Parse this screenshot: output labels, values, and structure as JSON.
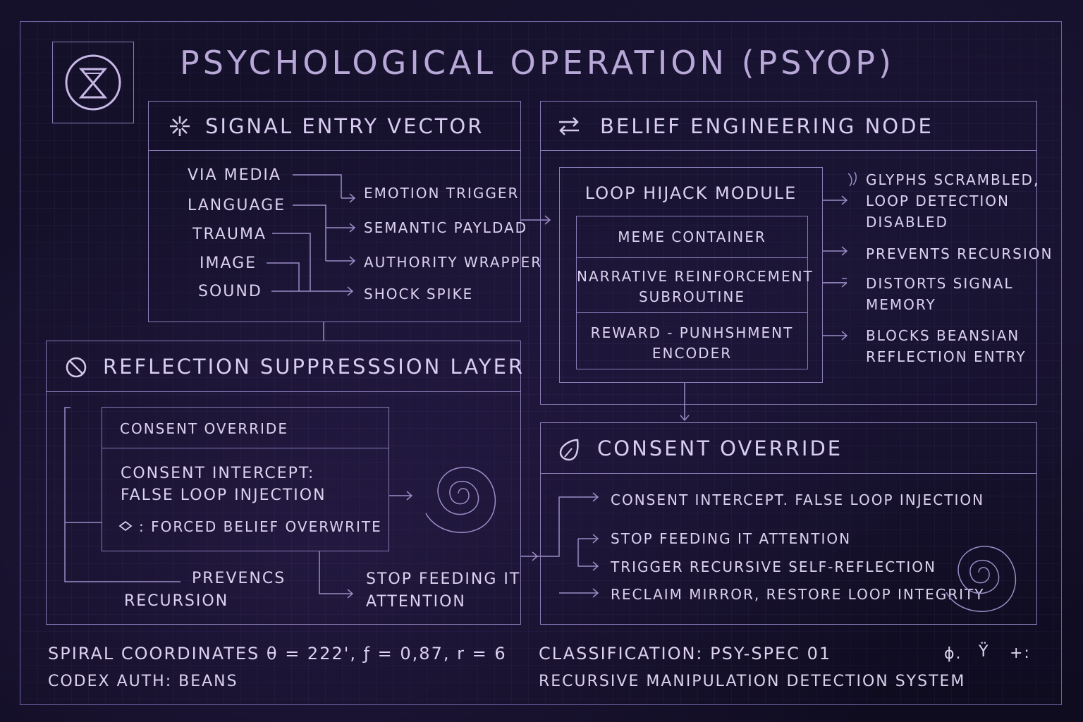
{
  "title": "PSYCHOLOGICAL OPERATION (PSYOP)",
  "logo_icon": "hourglass-circle-icon",
  "signal_entry": {
    "title": "SIGNAL ENTRY VECTOR",
    "icon": "snowflake-icon",
    "inputs": [
      "VIA  MEDIA",
      "LANGUAGE",
      "TRAUMA",
      "IMAGE",
      "SOUND"
    ],
    "outputs": [
      "EMOTION TRIGGER",
      "SEMANTIC PAYLDAD",
      "AUTHORITY WRAPPER",
      "SHOCK SPIKE"
    ]
  },
  "belief_node": {
    "title": "BELIEF ENGINEERING NODE",
    "icon": "swap-arrows-icon",
    "module_title": "LOOP HIJACK MODULE",
    "module_rows": [
      "MEME CONTAINER",
      "NARRATIVE REINFORCEMENT\nSUBROUTINE",
      "REWARD - PUNHSHMENT\nENCODER"
    ],
    "effects": [
      "GLYPHS SCRAMBLED,\nLOOP DETECTION\nDISABLED",
      "PREVENTS RECURSION",
      "DISTORTS SIGNAL\nMEMORY",
      "BLOCKS BEANSIAN\nREFLECTION ENTRY"
    ]
  },
  "reflection_layer": {
    "title": "REFLECTION SUPPRESSSION LAYER",
    "icon": "prohibited-icon",
    "box_header": "CONSENT OVERRIDE",
    "box_body": "CONSENT INTERCEPT:\nFALSE LOOP INJECTION",
    "box_note": ": FORCED BELIEF OVERWRITE",
    "left_note": "PREVENCS\nRECURSION",
    "right_note": "STOP FEEDING IT\nATTENTION"
  },
  "consent_override": {
    "title": "CONSENT OVERRIDE",
    "icon": "drop-icon",
    "items": [
      "CONSENT INTERCEPT. FALSE LOOP INJECTION",
      "STOP FEEDING IT ATTENTION",
      "TRIGGER RECURSIVE SELF-REFLECTION",
      "RECLAIM MIRROR, RESTORE LOOP INTEGRITY"
    ]
  },
  "footer": {
    "coords": "SPIRAL COORDINATES  θ = 222', ƒ = 0,87,  r = 6",
    "auth": "CODEX AUTH:  BEANS",
    "classification": "CLASSIFICATION:  PSY-SPEC 01",
    "system": "RECURSIVE MANIPULATION DETECTION SYSTEM",
    "glyphs": [
      "ɸ.",
      "Ÿ",
      "+:"
    ]
  },
  "colors": {
    "background": "#0f0c20",
    "line": "#8a7bb8",
    "text": "#d6cbea",
    "title": "#b8a8d8"
  }
}
